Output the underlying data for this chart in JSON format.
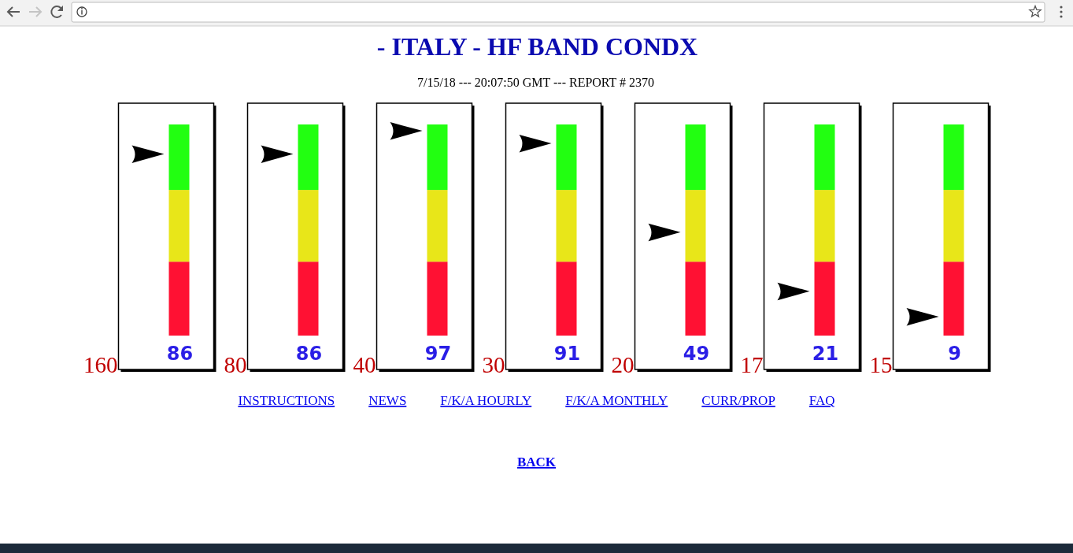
{
  "chart_data": [
    {
      "type": "other",
      "title": "- ITALY - HF BAND CONDX",
      "subtitle": "7/15/18 --- 20:07:50 GMT --- REPORT # 2370"
    },
    {
      "type": "other",
      "categories": [
        "160"
      ],
      "values": [
        86
      ],
      "color": "#000000",
      "data_labels": true
    },
    {
      "type": "other",
      "categories": [
        "80"
      ],
      "values": [
        86
      ],
      "color": "#000000",
      "data_labels": true
    },
    {
      "type": "other",
      "categories": [
        "40"
      ],
      "values": [
        97
      ],
      "color": "#000000",
      "data_labels": true
    },
    {
      "type": "other",
      "categories": [
        "30"
      ],
      "values": [
        91
      ],
      "color": "#000000",
      "data_labels": true
    },
    {
      "type": "other",
      "categories": [
        "20"
      ],
      "values": [
        49
      ],
      "color": "#000000",
      "data_labels": true
    },
    {
      "type": "other",
      "categories": [
        "17"
      ],
      "values": [
        21
      ],
      "color": "#000000",
      "data_labels": true
    },
    {
      "type": "other",
      "categories": [
        "15"
      ],
      "values": [
        9
      ],
      "color": "#000000",
      "data_labels": true
    },
    {
      "type": "other",
      "annotations": [
        "INSTRUCTIONS",
        "NEWS",
        "F/K/A HOURLY",
        "F/K/A MONTHLY",
        "CURR/PROP",
        "FAQ",
        "BACK"
      ]
    }
  ]
}
